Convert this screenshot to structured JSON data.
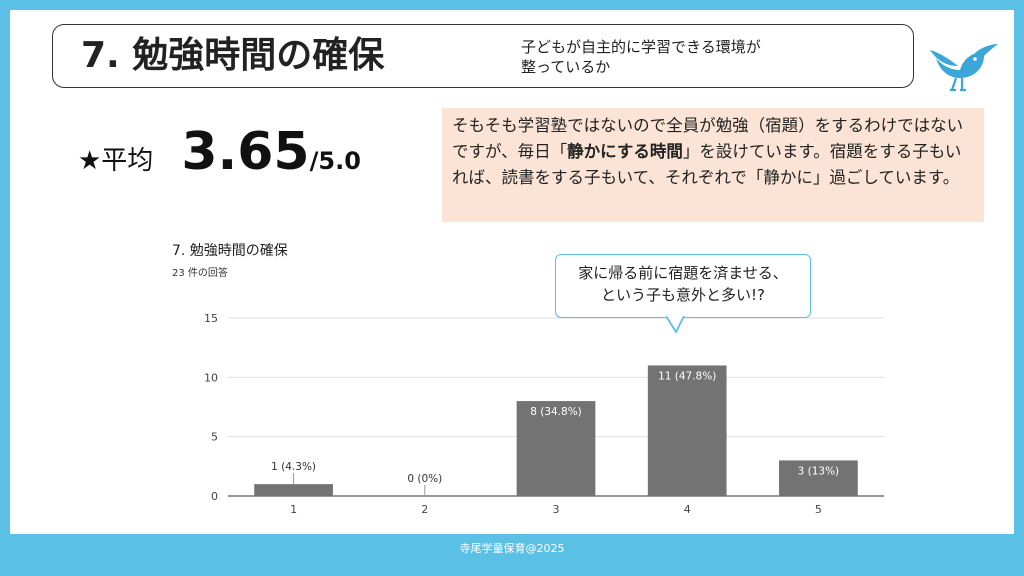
{
  "header": {
    "title": "7. 勉強時間の確保",
    "subtitle_line1": "子どもが自主的に学習できる環境が",
    "subtitle_line2": "整っているか"
  },
  "average": {
    "label": "★平均",
    "value": "3.65",
    "max": "/5.0"
  },
  "note": {
    "part1": "そもそも学習塾ではないので全員が勉強（宿題）をするわけではないですが、毎日「",
    "bold": "静かにする時間",
    "part2": "」を設けています。宿題をする子もいれば、読書をする子もいて、それぞれで「静かに」過ごしています。"
  },
  "callout": {
    "line1": "家に帰る前に宿題を済ませる、",
    "line2": "という子も意外と多い!?"
  },
  "footer": {
    "text": "寺尾学童保育@2025"
  },
  "colors": {
    "frame": "#5bc0e6",
    "bar": "#737373",
    "note_bg": "#fbe4d5"
  },
  "icons": {
    "mascot": "bird-icon"
  },
  "chart_data": {
    "type": "bar",
    "title": "7. 勉強時間の確保",
    "subtitle": "23 件の回答",
    "categories": [
      "1",
      "2",
      "3",
      "4",
      "5"
    ],
    "values": [
      1,
      0,
      8,
      11,
      3
    ],
    "data_labels": [
      "1 (4.3%)",
      "0 (0%)",
      "8 (34.8%)",
      "11 (47.8%)",
      "3 (13%)"
    ],
    "yticks": [
      0,
      5,
      10,
      15
    ],
    "ylim": [
      0,
      15
    ],
    "grid": true,
    "legend": "none"
  }
}
